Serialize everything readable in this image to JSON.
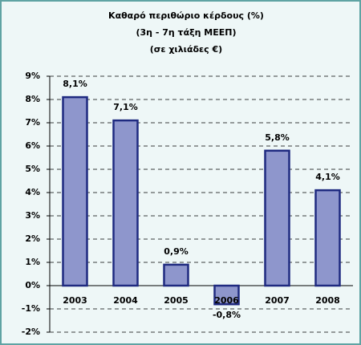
{
  "chart_data": {
    "type": "bar",
    "title": "Καθαρό περιθώριο κέρδους (%)",
    "subtitle": [
      "(3η - 7η τάξη ΜΕΕΠ)",
      "(σε χιλιάδες €)"
    ],
    "categories": [
      "2003",
      "2004",
      "2005",
      "2006",
      "2007",
      "2008"
    ],
    "values": [
      8.1,
      7.1,
      0.9,
      -0.8,
      5.8,
      4.1
    ],
    "value_labels": [
      "8,1%",
      "7,1%",
      "0,9%",
      "-0,8%",
      "5,8%",
      "4,1%"
    ],
    "color": "#8e96cc",
    "ylim": [
      -2,
      9
    ],
    "yticks": [
      {
        "value": -2,
        "label": "-2%"
      },
      {
        "value": -1,
        "label": "-1%"
      },
      {
        "value": 0,
        "label": "0%"
      },
      {
        "value": 1,
        "label": "1%"
      },
      {
        "value": 2,
        "label": "2%"
      },
      {
        "value": 3,
        "label": "3%"
      },
      {
        "value": 4,
        "label": "4%"
      },
      {
        "value": 5,
        "label": "5%"
      },
      {
        "value": 6,
        "label": "6%"
      },
      {
        "value": 7,
        "label": "7%"
      },
      {
        "value": 8,
        "label": "8%"
      },
      {
        "value": 9,
        "label": "9%"
      }
    ],
    "grid": true
  }
}
